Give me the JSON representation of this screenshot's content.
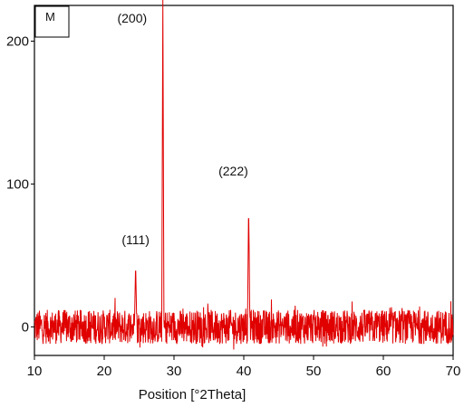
{
  "chart_data": {
    "type": "line",
    "panel_label": "M",
    "xlabel": "Position [°2Theta]",
    "ylabel": "",
    "xlim": [
      10,
      70
    ],
    "ylim": [
      -20,
      225
    ],
    "x_ticks": [
      10,
      20,
      30,
      40,
      50,
      60,
      70
    ],
    "y_ticks": [
      0,
      100,
      200
    ],
    "grid": false,
    "line_color": "#e00000",
    "noise_band": [
      -12,
      12
    ],
    "peaks": [
      {
        "x": 24.5,
        "y": 40
      },
      {
        "x": 28.4,
        "y": 225
      },
      {
        "x": 40.7,
        "y": 82
      }
    ],
    "annotations": [
      {
        "text": "(111)",
        "x": 24.5,
        "y": 58
      },
      {
        "text": "(200)",
        "x": 24.0,
        "y": 213
      },
      {
        "text": "(222)",
        "x": 38.5,
        "y": 106
      }
    ]
  }
}
